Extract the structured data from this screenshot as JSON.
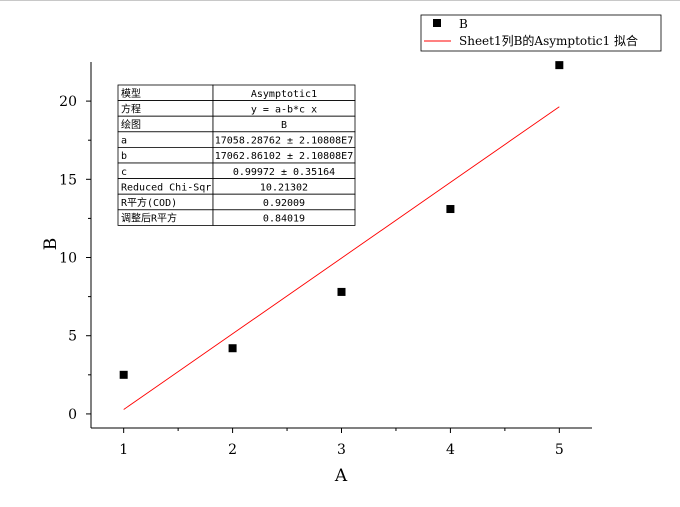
{
  "chart_data": {
    "type": "scatter",
    "xlabel": "A",
    "ylabel": "B",
    "xlim": [
      0.7,
      5.3
    ],
    "ylim": [
      -0.9,
      22.5
    ],
    "x_ticks": [
      "1",
      "2",
      "3",
      "4",
      "5"
    ],
    "y_ticks": [
      "0",
      "5",
      "10",
      "15",
      "20"
    ],
    "series": [
      {
        "name": "B",
        "kind": "scatter",
        "marker": "square",
        "color": "#000000",
        "x": [
          1,
          2,
          3,
          4,
          5
        ],
        "y": [
          2.5,
          4.2,
          7.8,
          13.1,
          22.3
        ]
      },
      {
        "name": "Sheet1列B的Asymptotic1 拟合",
        "kind": "line",
        "color": "#ff0000",
        "x": [
          1,
          2,
          3,
          4,
          5
        ],
        "y": [
          0.28,
          5.12,
          9.96,
          14.8,
          19.64
        ]
      }
    ],
    "legend_position": "top-right",
    "fit_table": [
      {
        "label": "模型",
        "value": "Asymptotic1"
      },
      {
        "label": "方程",
        "value": "y = a-b*c x"
      },
      {
        "label": "绘图",
        "value": "B"
      },
      {
        "label": "a",
        "value": "17058.28762 ± 2.10808E7"
      },
      {
        "label": "b",
        "value": "17062.86102 ± 2.10808E7"
      },
      {
        "label": "c",
        "value": "0.99972 ± 0.35164"
      },
      {
        "label": "Reduced Chi-Sqr",
        "value": "10.21302"
      },
      {
        "label": "R平方(COD)",
        "value": "0.92009"
      },
      {
        "label": "调整后R平方",
        "value": "0.84019"
      }
    ]
  }
}
